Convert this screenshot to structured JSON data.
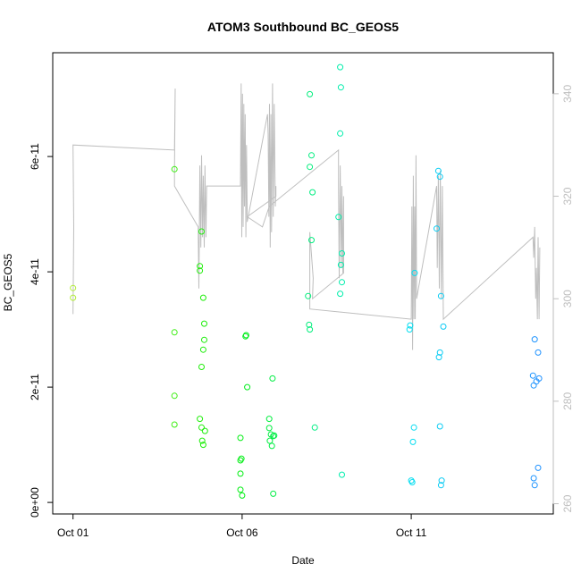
{
  "chart_data": {
    "type": "scatter",
    "title": "ATOM3 Southbound BC_GEOS5",
    "xlabel": "Date",
    "ylabel": "BC_GEOS5",
    "x_ticks": [
      {
        "label": "Oct 01",
        "day": 0
      },
      {
        "label": "Oct 06",
        "day": 5
      },
      {
        "label": "Oct 11",
        "day": 10
      }
    ],
    "y_ticks": [
      {
        "label": "0e+00",
        "value": 0
      },
      {
        "label": "2e-11",
        "value": 2e-11
      },
      {
        "label": "4e-11",
        "value": 4e-11
      },
      {
        "label": "6e-11",
        "value": 6e-11
      }
    ],
    "y2_ticks": [
      260,
      280,
      300,
      320,
      340
    ],
    "xlim": [
      -0.6,
      14.2
    ],
    "ylim": [
      -2e-12,
      7.8e-11
    ],
    "y2lim": [
      258,
      348
    ],
    "grid": false,
    "colors": {
      "line": "#bebebe",
      "right_axis": "#bebebe",
      "points_gradient": [
        "#b3ee3a",
        "#00ee00",
        "#00eeee",
        "#1e90ff"
      ]
    },
    "series": [
      {
        "points": [
          [
            0.0,
            3.72e-11
          ],
          [
            0.0,
            3.55e-11
          ],
          [
            3.0,
            5.78e-11
          ],
          [
            3.0,
            2.95e-11
          ],
          [
            3.0,
            1.85e-11
          ],
          [
            3.0,
            1.35e-11
          ],
          [
            3.75,
            4.1e-11
          ],
          [
            3.75,
            4.02e-11
          ],
          [
            3.8,
            4.7e-11
          ],
          [
            3.85,
            3.55e-11
          ],
          [
            3.88,
            3.1e-11
          ],
          [
            3.88,
            2.82e-11
          ],
          [
            3.85,
            2.65e-11
          ],
          [
            3.8,
            2.35e-11
          ],
          [
            3.75,
            1.45e-11
          ],
          [
            3.8,
            1.3e-11
          ],
          [
            3.9,
            1.24e-11
          ],
          [
            3.82,
            1.07e-11
          ],
          [
            3.85,
            1e-11
          ],
          [
            4.95,
            1.12e-11
          ],
          [
            4.95,
            7.3e-12
          ],
          [
            4.98,
            7.6e-12
          ],
          [
            4.95,
            5e-12
          ],
          [
            4.95,
            2.2e-12
          ],
          [
            5.0,
            1.2e-12
          ],
          [
            5.1,
            2.88e-11
          ],
          [
            5.12,
            2.9e-11
          ],
          [
            5.15,
            2e-11
          ],
          [
            5.8,
            1.45e-11
          ],
          [
            5.8,
            1.29e-11
          ],
          [
            5.82,
            1.07e-11
          ],
          [
            5.85,
            1.18e-11
          ],
          [
            5.88,
            9.8e-12
          ],
          [
            5.92,
            1.15e-11
          ],
          [
            5.95,
            1.16e-11
          ],
          [
            5.9,
            2.15e-11
          ],
          [
            5.92,
            1.5e-12
          ],
          [
            7.0,
            7.08e-11
          ],
          [
            7.05,
            6.02e-11
          ],
          [
            7.0,
            5.82e-11
          ],
          [
            7.08,
            5.38e-11
          ],
          [
            7.05,
            4.55e-11
          ],
          [
            6.95,
            3.58e-11
          ],
          [
            6.98,
            3.08e-11
          ],
          [
            7.0,
            3e-11
          ],
          [
            7.15,
            1.3e-11
          ],
          [
            7.9,
            7.55e-11
          ],
          [
            7.92,
            7.2e-11
          ],
          [
            7.9,
            6.4e-11
          ],
          [
            7.85,
            4.95e-11
          ],
          [
            7.95,
            4.32e-11
          ],
          [
            7.92,
            4.12e-11
          ],
          [
            7.95,
            3.82e-11
          ],
          [
            7.9,
            3.62e-11
          ],
          [
            7.95,
            4.8e-12
          ],
          [
            9.97,
            3.07e-11
          ],
          [
            9.95,
            3e-11
          ],
          [
            10.1,
            3.98e-11
          ],
          [
            10.08,
            1.3e-11
          ],
          [
            10.05,
            1.05e-11
          ],
          [
            10.0,
            3.8e-12
          ],
          [
            10.03,
            3.5e-12
          ],
          [
            10.8,
            5.75e-11
          ],
          [
            10.85,
            5.65e-11
          ],
          [
            10.75,
            4.75e-11
          ],
          [
            10.88,
            3.58e-11
          ],
          [
            10.95,
            3.05e-11
          ],
          [
            10.85,
            2.6e-11
          ],
          [
            10.82,
            2.52e-11
          ],
          [
            10.85,
            1.32e-11
          ],
          [
            10.9,
            3.8e-12
          ],
          [
            10.88,
            3e-12
          ],
          [
            13.65,
            2.83e-11
          ],
          [
            13.75,
            2.6e-11
          ],
          [
            13.6,
            2.2e-11
          ],
          [
            13.78,
            2.15e-11
          ],
          [
            13.7,
            2.1e-11
          ],
          [
            13.62,
            2.03e-11
          ],
          [
            13.75,
            6e-12
          ],
          [
            13.62,
            4.2e-12
          ],
          [
            13.65,
            3e-12
          ]
        ]
      }
    ],
    "altitude_line": [
      [
        0.0,
        297
      ],
      [
        0.02,
        314
      ],
      [
        0.0,
        330
      ],
      [
        3.0,
        329
      ],
      [
        3.02,
        341
      ],
      [
        3.0,
        325
      ],
      [
        3.0,
        322
      ],
      [
        3.7,
        314
      ],
      [
        3.72,
        302
      ],
      [
        3.75,
        326
      ],
      [
        3.78,
        310
      ],
      [
        3.8,
        328
      ],
      [
        3.83,
        312
      ],
      [
        3.85,
        324
      ],
      [
        3.88,
        310
      ],
      [
        3.9,
        326
      ],
      [
        3.93,
        312
      ],
      [
        3.95,
        322
      ],
      [
        4.95,
        322
      ],
      [
        4.97,
        342
      ],
      [
        4.99,
        312
      ],
      [
        5.01,
        340
      ],
      [
        5.03,
        314
      ],
      [
        5.05,
        338
      ],
      [
        5.07,
        318
      ],
      [
        5.09,
        336
      ],
      [
        5.11,
        312
      ],
      [
        5.13,
        330
      ],
      [
        5.15,
        316
      ],
      [
        5.15,
        315
      ],
      [
        5.75,
        336
      ],
      [
        5.77,
        332
      ],
      [
        5.79,
        316
      ],
      [
        5.81,
        338
      ],
      [
        5.83,
        310
      ],
      [
        5.85,
        336
      ],
      [
        5.87,
        313
      ],
      [
        5.9,
        342
      ],
      [
        5.92,
        316
      ],
      [
        5.95,
        338
      ],
      [
        5.98,
        318
      ],
      [
        6.0,
        322
      ],
      [
        6.0,
        320
      ],
      [
        5.15,
        316
      ],
      [
        5.6,
        314
      ],
      [
        5.8,
        318
      ],
      [
        7.85,
        329
      ],
      [
        7.85,
        322
      ],
      [
        7.87,
        304
      ],
      [
        7.9,
        326
      ],
      [
        7.93,
        306
      ],
      [
        7.95,
        322
      ],
      [
        7.98,
        305
      ],
      [
        8.0,
        320
      ],
      [
        8.0,
        305
      ],
      [
        7.08,
        300
      ],
      [
        7.1,
        304
      ],
      [
        7.0,
        313
      ],
      [
        7.0,
        298
      ],
      [
        10.0,
        296
      ],
      [
        10.02,
        318
      ],
      [
        10.04,
        290
      ],
      [
        10.06,
        324
      ],
      [
        10.08,
        296
      ],
      [
        10.1,
        318
      ],
      [
        10.12,
        296
      ],
      [
        10.14,
        328
      ],
      [
        10.16,
        300
      ],
      [
        10.16,
        300
      ],
      [
        10.75,
        322
      ],
      [
        10.77,
        306
      ],
      [
        10.8,
        324
      ],
      [
        10.83,
        302
      ],
      [
        10.86,
        325
      ],
      [
        10.89,
        300
      ],
      [
        10.92,
        322
      ],
      [
        10.95,
        296
      ],
      [
        10.95,
        296
      ],
      [
        13.6,
        312
      ],
      [
        13.62,
        308
      ],
      [
        13.65,
        314
      ],
      [
        13.68,
        300
      ],
      [
        13.7,
        306
      ],
      [
        13.73,
        296
      ],
      [
        13.75,
        312
      ],
      [
        13.78,
        296
      ],
      [
        13.8,
        310
      ]
    ]
  }
}
